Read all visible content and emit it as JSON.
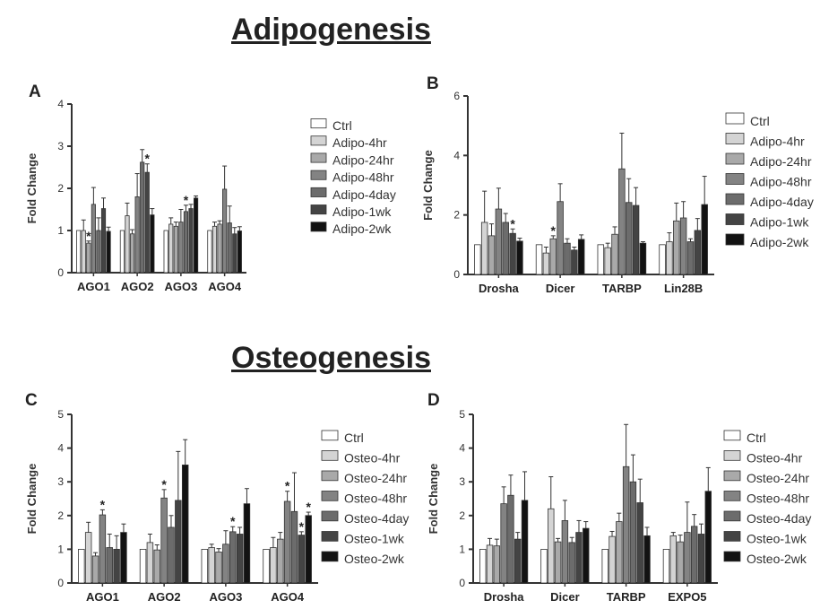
{
  "figure": {
    "adipo_title": "Adipogenesis",
    "osteo_title": "Osteogenesis"
  },
  "series_colors": [
    "#ffffff",
    "#d4d4d4",
    "#a9a9a9",
    "#838383",
    "#6c6c6c",
    "#444444",
    "#121212"
  ],
  "chart_data": [
    {
      "panel_label": "A",
      "type": "bar",
      "ylabel": "Fold Change",
      "ylim": [
        0,
        4
      ],
      "yticks": [
        0,
        1,
        2,
        3,
        4
      ],
      "categories": [
        "AGO1",
        "AGO2",
        "AGO3",
        "AGO4"
      ],
      "series": [
        {
          "name": "Ctrl",
          "values": [
            1.0,
            1.0,
            1.0,
            1.0
          ],
          "errors": [
            0.0,
            0.0,
            0.0,
            0.0
          ]
        },
        {
          "name": "Adipo-4hr",
          "values": [
            1.0,
            1.35,
            1.15,
            1.1
          ],
          "errors": [
            0.25,
            0.3,
            0.15,
            0.1
          ]
        },
        {
          "name": "Adipo-24hr",
          "values": [
            0.7,
            0.92,
            1.1,
            1.15
          ],
          "errors": [
            0.05,
            0.1,
            0.1,
            0.08
          ]
        },
        {
          "name": "Adipo-48hr",
          "values": [
            1.62,
            1.8,
            1.2,
            1.98
          ],
          "errors": [
            0.4,
            0.55,
            0.3,
            0.55
          ]
        },
        {
          "name": "Adipo-4day",
          "values": [
            1.0,
            2.62,
            1.45,
            1.18
          ],
          "errors": [
            0.3,
            0.3,
            0.15,
            0.4
          ]
        },
        {
          "name": "Adipo-1wk",
          "values": [
            1.52,
            2.38,
            1.52,
            0.92
          ],
          "errors": [
            0.25,
            0.2,
            0.1,
            0.15
          ]
        },
        {
          "name": "Adipo-2wk",
          "values": [
            0.98,
            1.37,
            1.77,
            0.99
          ],
          "errors": [
            0.1,
            0.15,
            0.05,
            0.1
          ]
        }
      ],
      "significance": [
        {
          "category": 0,
          "series": 2,
          "label": "*"
        },
        {
          "category": 1,
          "series": 5,
          "label": "*"
        },
        {
          "category": 2,
          "series": 4,
          "label": "*"
        }
      ]
    },
    {
      "panel_label": "B",
      "type": "bar",
      "ylabel": "Fold Change",
      "ylim": [
        0,
        6
      ],
      "yticks": [
        0,
        2,
        4,
        6
      ],
      "categories": [
        "Drosha",
        "Dicer",
        "TARBP",
        "Lin28B"
      ],
      "series": [
        {
          "name": "Ctrl",
          "values": [
            1.0,
            1.0,
            1.0,
            1.0
          ],
          "errors": [
            0.0,
            0.0,
            0.0,
            0.0
          ]
        },
        {
          "name": "Adipo-4hr",
          "values": [
            1.75,
            0.72,
            0.9,
            1.1
          ],
          "errors": [
            1.05,
            0.2,
            0.15,
            0.3
          ]
        },
        {
          "name": "Adipo-24hr",
          "values": [
            1.3,
            1.2,
            1.35,
            1.8
          ],
          "errors": [
            0.4,
            0.1,
            0.25,
            0.6
          ]
        },
        {
          "name": "Adipo-48hr",
          "values": [
            2.2,
            2.45,
            3.55,
            1.9
          ],
          "errors": [
            0.7,
            0.6,
            1.2,
            0.55
          ]
        },
        {
          "name": "Adipo-4day",
          "values": [
            1.75,
            1.05,
            2.42,
            1.1
          ],
          "errors": [
            0.3,
            0.15,
            0.8,
            0.1
          ]
        },
        {
          "name": "Adipo-1wk",
          "values": [
            1.38,
            0.82,
            2.32,
            1.48
          ],
          "errors": [
            0.15,
            0.1,
            0.6,
            0.4
          ]
        },
        {
          "name": "Adipo-2wk",
          "values": [
            1.12,
            1.18,
            1.05,
            2.35
          ],
          "errors": [
            0.1,
            0.15,
            0.05,
            0.95
          ]
        }
      ],
      "significance": [
        {
          "category": 0,
          "series": 5,
          "label": "*"
        },
        {
          "category": 1,
          "series": 2,
          "label": "*"
        }
      ]
    },
    {
      "panel_label": "C",
      "type": "bar",
      "ylabel": "Fold Change",
      "ylim": [
        0,
        5
      ],
      "yticks": [
        0,
        1,
        2,
        3,
        4,
        5
      ],
      "categories": [
        "AGO1",
        "AGO2",
        "AGO3",
        "AGO4"
      ],
      "series": [
        {
          "name": "Ctrl",
          "values": [
            1.0,
            1.0,
            1.0,
            1.0
          ],
          "errors": [
            0.0,
            0.0,
            0.0,
            0.0
          ]
        },
        {
          "name": "Osteo-4hr",
          "values": [
            1.5,
            1.2,
            1.05,
            1.05
          ],
          "errors": [
            0.3,
            0.25,
            0.1,
            0.3
          ]
        },
        {
          "name": "Osteo-24hr",
          "values": [
            0.8,
            0.98,
            0.92,
            1.3
          ],
          "errors": [
            0.1,
            0.15,
            0.1,
            0.2
          ]
        },
        {
          "name": "Osteo-48hr",
          "values": [
            2.02,
            2.52,
            1.15,
            2.42
          ],
          "errors": [
            0.15,
            0.25,
            0.4,
            0.3
          ]
        },
        {
          "name": "Osteo-4day",
          "values": [
            1.05,
            1.65,
            1.52,
            2.12
          ],
          "errors": [
            0.4,
            0.35,
            0.15,
            1.15
          ]
        },
        {
          "name": "Osteo-1wk",
          "values": [
            1.0,
            2.45,
            1.45,
            1.42
          ],
          "errors": [
            0.4,
            1.45,
            0.2,
            0.1
          ]
        },
        {
          "name": "Osteo-2wk",
          "values": [
            1.5,
            3.5,
            2.35,
            2.0
          ],
          "errors": [
            0.25,
            0.75,
            0.45,
            0.1
          ]
        }
      ],
      "significance": [
        {
          "category": 0,
          "series": 3,
          "label": "*"
        },
        {
          "category": 1,
          "series": 3,
          "label": "*"
        },
        {
          "category": 2,
          "series": 4,
          "label": "*"
        },
        {
          "category": 3,
          "series": 3,
          "label": "*"
        },
        {
          "category": 3,
          "series": 5,
          "label": "*"
        },
        {
          "category": 3,
          "series": 6,
          "label": "*"
        }
      ]
    },
    {
      "panel_label": "D",
      "type": "bar",
      "ylabel": "Fold Change",
      "ylim": [
        0,
        5
      ],
      "yticks": [
        0,
        1,
        2,
        3,
        4,
        5
      ],
      "categories": [
        "Drosha",
        "Dicer",
        "TARBP",
        "EXPO5"
      ],
      "series": [
        {
          "name": "Ctrl",
          "values": [
            1.0,
            1.0,
            1.0,
            1.0
          ],
          "errors": [
            0.0,
            0.0,
            0.0,
            0.0
          ]
        },
        {
          "name": "Osteo-4hr",
          "values": [
            1.12,
            2.2,
            1.38,
            1.4
          ],
          "errors": [
            0.2,
            0.95,
            0.15,
            0.1
          ]
        },
        {
          "name": "Osteo-24hr",
          "values": [
            1.1,
            1.22,
            1.82,
            1.22
          ],
          "errors": [
            0.2,
            0.1,
            0.25,
            0.2
          ]
        },
        {
          "name": "Osteo-48hr",
          "values": [
            2.35,
            1.85,
            3.45,
            1.5
          ],
          "errors": [
            0.5,
            0.6,
            1.25,
            0.9
          ]
        },
        {
          "name": "Osteo-4day",
          "values": [
            2.6,
            1.2,
            3.0,
            1.68
          ],
          "errors": [
            0.6,
            0.15,
            0.8,
            0.35
          ]
        },
        {
          "name": "Osteo-1wk",
          "values": [
            1.3,
            1.5,
            2.38,
            1.45
          ],
          "errors": [
            0.2,
            0.35,
            0.7,
            0.3
          ]
        },
        {
          "name": "Osteo-2wk",
          "values": [
            2.45,
            1.62,
            1.4,
            2.72
          ],
          "errors": [
            0.85,
            0.2,
            0.25,
            0.7
          ]
        }
      ],
      "significance": []
    }
  ]
}
